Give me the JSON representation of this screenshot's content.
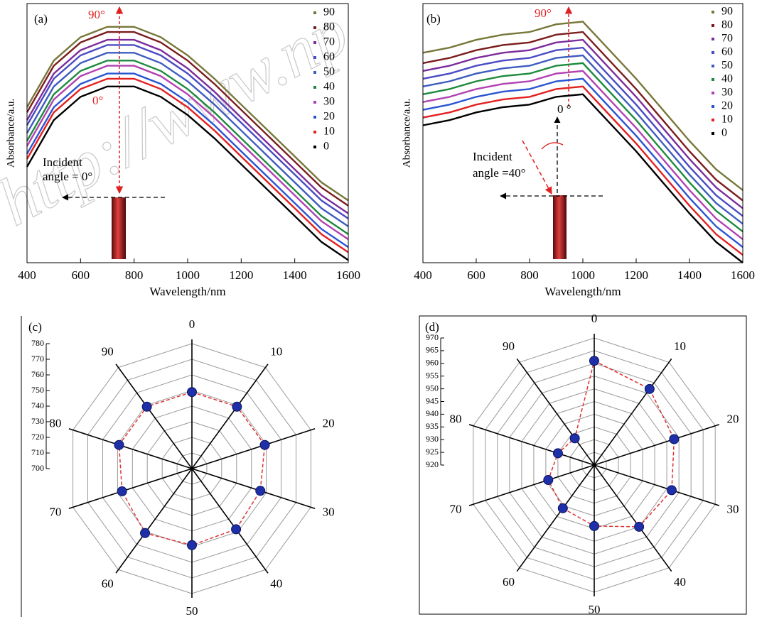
{
  "watermark": "http://www.np",
  "chart_data": [
    {
      "type": "line",
      "panel_label": "(a)",
      "x_label": "Wavelength/nm",
      "y_label": "Absorbance/a.u.",
      "x": [
        400,
        500,
        600,
        700,
        800,
        900,
        1000,
        1100,
        1200,
        1300,
        1400,
        1500,
        1600
      ],
      "xlim": [
        400,
        1600
      ],
      "xticks": [
        400,
        600,
        800,
        1000,
        1200,
        1400,
        1600
      ],
      "ylim": [
        0,
        100
      ],
      "legend": "upper right",
      "annotations": [
        "90°",
        "0°",
        "Incident",
        "angle = 0°"
      ],
      "series": [
        {
          "name": "0",
          "color": "#000000",
          "values": [
            37,
            55,
            64,
            68,
            68,
            64,
            57,
            48,
            38,
            28,
            18,
            8,
            1
          ]
        },
        {
          "name": "10",
          "color": "#e32020",
          "values": [
            40,
            58,
            67,
            71,
            71,
            67,
            60,
            51,
            41,
            31,
            21,
            11,
            4
          ]
        },
        {
          "name": "20",
          "color": "#2a55d2",
          "values": [
            42,
            60,
            69,
            73,
            73,
            69,
            62,
            53,
            43,
            33,
            23,
            13,
            6
          ]
        },
        {
          "name": "30",
          "color": "#b142b1",
          "values": [
            45,
            63,
            72,
            76,
            76,
            72,
            65,
            56,
            46,
            36,
            26,
            16,
            9
          ]
        },
        {
          "name": "40",
          "color": "#1c8a3c",
          "values": [
            47,
            65,
            74,
            78,
            78,
            74,
            67,
            58,
            48,
            38,
            28,
            18,
            11
          ]
        },
        {
          "name": "50",
          "color": "#3d5cbf",
          "values": [
            50,
            68,
            77,
            81,
            81,
            77,
            70,
            61,
            51,
            41,
            31,
            21,
            14
          ]
        },
        {
          "name": "60",
          "color": "#4a4ac4",
          "values": [
            53,
            71,
            80,
            84,
            84,
            80,
            73,
            64,
            54,
            44,
            34,
            24,
            17
          ]
        },
        {
          "name": "70",
          "color": "#7b2c9c",
          "values": [
            55,
            73,
            82,
            86,
            86,
            82,
            75,
            66,
            56,
            46,
            36,
            26,
            19
          ]
        },
        {
          "name": "80",
          "color": "#7a1c1c",
          "values": [
            58,
            76,
            85,
            89,
            89,
            85,
            78,
            69,
            59,
            49,
            39,
            29,
            22
          ]
        },
        {
          "name": "90",
          "color": "#77773a",
          "values": [
            60,
            78,
            87,
            91,
            91,
            87,
            80,
            71,
            61,
            51,
            41,
            31,
            24
          ]
        }
      ]
    },
    {
      "type": "line",
      "panel_label": "(b)",
      "x_label": "Wavelength/nm",
      "y_label": "Absorbance/a.u.",
      "x": [
        400,
        500,
        600,
        700,
        800,
        900,
        1000,
        1100,
        1200,
        1300,
        1400,
        1500,
        1600
      ],
      "xlim": [
        400,
        1600
      ],
      "xticks": [
        400,
        600,
        800,
        1000,
        1200,
        1400,
        1600
      ],
      "ylim": [
        0,
        100
      ],
      "legend": "upper right",
      "annotations": [
        "90°",
        "0 °",
        "Incident",
        "angle =40°"
      ],
      "series": [
        {
          "name": "0",
          "color": "#000000",
          "values": [
            53,
            55,
            58,
            60,
            61,
            64,
            65,
            54,
            43,
            31,
            19,
            8,
            0
          ]
        },
        {
          "name": "10",
          "color": "#e32020",
          "values": [
            56,
            58,
            61,
            63,
            64,
            67,
            68,
            57,
            46,
            34,
            22,
            11,
            3
          ]
        },
        {
          "name": "20",
          "color": "#2a55d2",
          "values": [
            59,
            61,
            64,
            66,
            67,
            70,
            71,
            60,
            49,
            37,
            25,
            14,
            6
          ]
        },
        {
          "name": "30",
          "color": "#b142b1",
          "values": [
            62,
            64,
            67,
            69,
            70,
            73,
            74,
            63,
            52,
            40,
            28,
            17,
            9
          ]
        },
        {
          "name": "40",
          "color": "#1c8a3c",
          "values": [
            65,
            67,
            70,
            72,
            73,
            76,
            77,
            66,
            55,
            43,
            31,
            20,
            12
          ]
        },
        {
          "name": "50",
          "color": "#3d5cbf",
          "values": [
            68,
            70,
            73,
            75,
            76,
            79,
            80,
            69,
            58,
            46,
            34,
            23,
            15
          ]
        },
        {
          "name": "60",
          "color": "#4a4ac4",
          "values": [
            71,
            73,
            76,
            78,
            79,
            82,
            83,
            72,
            61,
            49,
            37,
            26,
            18
          ]
        },
        {
          "name": "70",
          "color": "#7b2c9c",
          "values": [
            74,
            76,
            79,
            81,
            82,
            85,
            86,
            75,
            64,
            52,
            40,
            29,
            21
          ]
        },
        {
          "name": "80",
          "color": "#7a1c1c",
          "values": [
            77,
            79,
            82,
            84,
            85,
            88,
            89,
            78,
            67,
            55,
            43,
            32,
            24
          ]
        },
        {
          "name": "90",
          "color": "#77773a",
          "values": [
            81,
            83,
            86,
            88,
            89,
            92,
            93,
            82,
            71,
            59,
            47,
            36,
            28
          ]
        }
      ]
    },
    {
      "type": "radar",
      "panel_label": "(c)",
      "categories": [
        "0",
        "10",
        "20",
        "30",
        "40",
        "50",
        "60",
        "70",
        "80",
        "90"
      ],
      "values": [
        749,
        749,
        749,
        746,
        748,
        749,
        751,
        747,
        749,
        749
      ],
      "color": "#1e2fa8",
      "line_color": "#e03030",
      "rlim": [
        700,
        780
      ],
      "rticks": [
        700,
        710,
        720,
        730,
        740,
        750,
        760,
        770,
        780
      ]
    },
    {
      "type": "radar",
      "panel_label": "(d)",
      "categories": [
        "0",
        "10",
        "20",
        "30",
        "40",
        "50",
        "60",
        "70",
        "80",
        "90"
      ],
      "values": [
        961,
        957,
        953,
        952,
        950,
        944,
        941,
        939,
        935,
        933
      ],
      "color": "#1e2fa8",
      "line_color": "#e03030",
      "rlim": [
        920,
        970
      ],
      "rticks": [
        920,
        925,
        930,
        935,
        940,
        945,
        950,
        955,
        960,
        965,
        970
      ]
    }
  ]
}
